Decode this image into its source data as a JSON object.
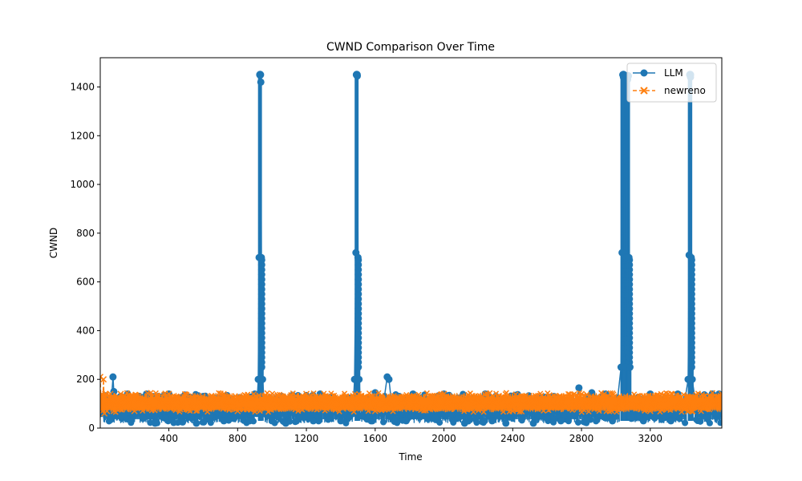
{
  "chart_data": {
    "type": "line",
    "title": "CWND Comparison Over Time",
    "xlabel": "Time",
    "ylabel": "CWND",
    "xlim": [
      1,
      3616
    ],
    "ylim": [
      0,
      1520
    ],
    "xticks": [
      400,
      800,
      1200,
      1600,
      2000,
      2400,
      2800,
      3200
    ],
    "yticks": [
      0,
      200,
      400,
      600,
      800,
      1000,
      1200,
      1400
    ],
    "grid": false,
    "legend": "top-right",
    "series": [
      {
        "name": "LLM",
        "color": "#1f77b4",
        "marker": "circle",
        "line_style": "solid",
        "points": [
          [
            5,
            60
          ],
          [
            20,
            120
          ],
          [
            40,
            90
          ],
          [
            60,
            50
          ],
          [
            75,
            210
          ],
          [
            80,
            150
          ],
          [
            100,
            80
          ],
          [
            120,
            130
          ],
          [
            140,
            60
          ],
          [
            160,
            140
          ],
          [
            180,
            30
          ],
          [
            200,
            120
          ],
          [
            220,
            90
          ],
          [
            250,
            40
          ],
          [
            270,
            140
          ],
          [
            300,
            70
          ],
          [
            320,
            20
          ],
          [
            340,
            130
          ],
          [
            360,
            90
          ],
          [
            380,
            40
          ],
          [
            400,
            140
          ],
          [
            420,
            60
          ],
          [
            450,
            110
          ],
          [
            480,
            25
          ],
          [
            510,
            120
          ],
          [
            540,
            80
          ],
          [
            560,
            20
          ],
          [
            600,
            130
          ],
          [
            640,
            50
          ],
          [
            680,
            110
          ],
          [
            720,
            30
          ],
          [
            760,
            120
          ],
          [
            800,
            60
          ],
          [
            840,
            100
          ],
          [
            870,
            30
          ],
          [
            900,
            140
          ],
          [
            910,
            60
          ],
          [
            920,
            200
          ],
          [
            925,
            700
          ],
          [
            930,
            1450
          ],
          [
            935,
            1420
          ],
          [
            938,
            700
          ],
          [
            945,
            200
          ],
          [
            960,
            60
          ],
          [
            980,
            120
          ],
          [
            1000,
            30
          ],
          [
            1040,
            100
          ],
          [
            1080,
            20
          ],
          [
            1120,
            130
          ],
          [
            1160,
            50
          ],
          [
            1200,
            100
          ],
          [
            1240,
            30
          ],
          [
            1280,
            140
          ],
          [
            1320,
            60
          ],
          [
            1360,
            100
          ],
          [
            1400,
            30
          ],
          [
            1440,
            120
          ],
          [
            1470,
            60
          ],
          [
            1480,
            200
          ],
          [
            1488,
            720
          ],
          [
            1492,
            1450
          ],
          [
            1496,
            1445
          ],
          [
            1500,
            700
          ],
          [
            1506,
            200
          ],
          [
            1520,
            50
          ],
          [
            1560,
            120
          ],
          [
            1600,
            145
          ],
          [
            1640,
            60
          ],
          [
            1670,
            210
          ],
          [
            1680,
            200
          ],
          [
            1700,
            70
          ],
          [
            1740,
            130
          ],
          [
            1780,
            30
          ],
          [
            1820,
            140
          ],
          [
            1860,
            60
          ],
          [
            1900,
            100
          ],
          [
            1950,
            40
          ],
          [
            2000,
            140
          ],
          [
            2040,
            60
          ],
          [
            2080,
            100
          ],
          [
            2120,
            20
          ],
          [
            2160,
            120
          ],
          [
            2200,
            60
          ],
          [
            2240,
            140
          ],
          [
            2280,
            30
          ],
          [
            2320,
            100
          ],
          [
            2360,
            20
          ],
          [
            2400,
            130
          ],
          [
            2440,
            60
          ],
          [
            2480,
            110
          ],
          [
            2520,
            20
          ],
          [
            2560,
            120
          ],
          [
            2600,
            40
          ],
          [
            2640,
            130
          ],
          [
            2680,
            30
          ],
          [
            2720,
            110
          ],
          [
            2760,
            60
          ],
          [
            2785,
            165
          ],
          [
            2800,
            80
          ],
          [
            2830,
            30
          ],
          [
            2860,
            145
          ],
          [
            2900,
            60
          ],
          [
            2940,
            140
          ],
          [
            2980,
            30
          ],
          [
            3010,
            120
          ],
          [
            3030,
            250
          ],
          [
            3036,
            720
          ],
          [
            3040,
            1450
          ],
          [
            3044,
            1440
          ],
          [
            3050,
            700
          ],
          [
            3056,
            250
          ],
          [
            3062,
            700
          ],
          [
            3068,
            1430
          ],
          [
            3072,
            1445
          ],
          [
            3076,
            700
          ],
          [
            3082,
            250
          ],
          [
            3090,
            40
          ],
          [
            3120,
            120
          ],
          [
            3160,
            30
          ],
          [
            3200,
            140
          ],
          [
            3240,
            50
          ],
          [
            3280,
            120
          ],
          [
            3320,
            30
          ],
          [
            3360,
            140
          ],
          [
            3390,
            60
          ],
          [
            3420,
            200
          ],
          [
            3426,
            710
          ],
          [
            3430,
            1450
          ],
          [
            3434,
            1440
          ],
          [
            3438,
            700
          ],
          [
            3444,
            200
          ],
          [
            3470,
            70
          ],
          [
            3500,
            120
          ],
          [
            3530,
            40
          ],
          [
            3560,
            140
          ],
          [
            3580,
            100
          ],
          [
            3600,
            140
          ],
          [
            3616,
            100
          ]
        ],
        "dense_band": {
          "x_ranges": [
            [
              20,
              900
            ],
            [
              960,
              1470
            ],
            [
              1520,
              3020
            ],
            [
              3090,
              3410
            ],
            [
              3460,
              3616
            ]
          ],
          "y_range": [
            20,
            140
          ]
        },
        "spikes": [
          {
            "x_range": [
              922,
              940
            ],
            "y_max": 1450
          },
          {
            "x_range": [
              1484,
              1502
            ],
            "y_max": 1450
          },
          {
            "x_range": [
              3030,
              3058
            ],
            "y_max": 1450
          },
          {
            "x_range": [
              3060,
              3080
            ],
            "y_max": 1445
          },
          {
            "x_range": [
              3422,
              3442
            ],
            "y_max": 1450
          }
        ]
      },
      {
        "name": "newreno",
        "color": "#ff7f0e",
        "marker": "x",
        "line_style": "dashed",
        "points": [
          [
            1,
            210
          ],
          [
            5,
            80
          ],
          [
            10,
            140
          ],
          [
            15,
            70
          ],
          [
            20,
            200
          ],
          [
            25,
            60
          ],
          [
            30,
            140
          ],
          [
            40,
            70
          ],
          [
            60,
            140
          ],
          [
            80,
            70
          ],
          [
            120,
            140
          ],
          [
            200,
            70
          ],
          [
            400,
            140
          ],
          [
            800,
            70
          ],
          [
            1200,
            140
          ],
          [
            1600,
            70
          ],
          [
            2000,
            140
          ],
          [
            2400,
            70
          ],
          [
            2800,
            140
          ],
          [
            3200,
            70
          ],
          [
            3616,
            140
          ]
        ],
        "dense_band": {
          "x_ranges": [
            [
              1,
              3616
            ]
          ],
          "y_range": [
            65,
            145
          ]
        }
      }
    ]
  }
}
